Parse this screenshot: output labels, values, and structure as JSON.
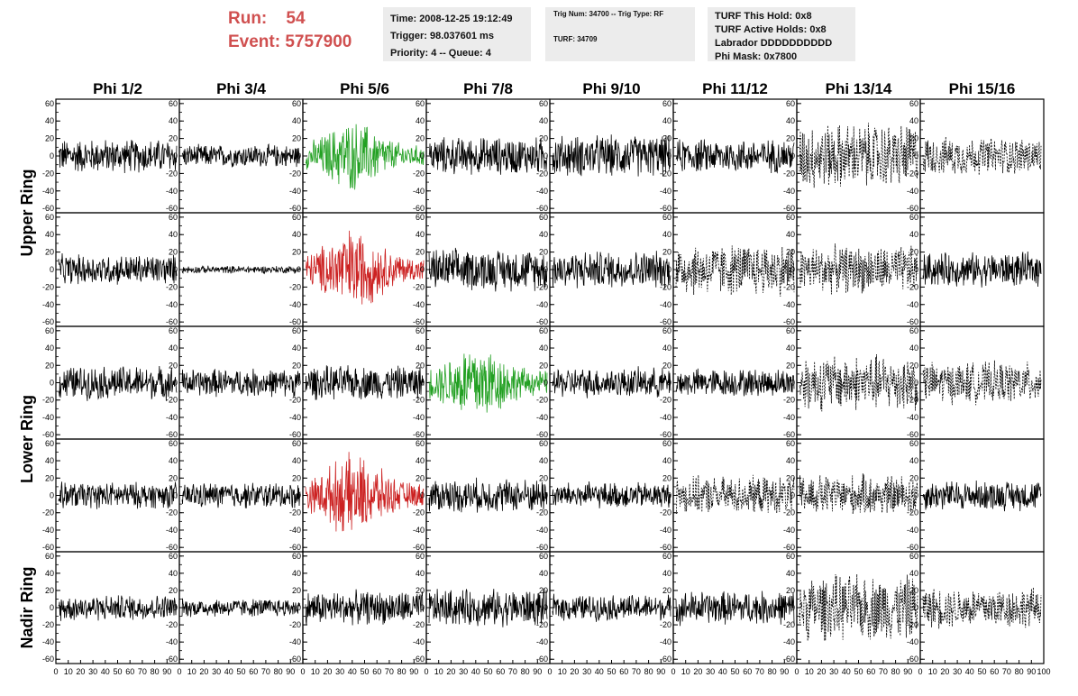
{
  "header": {
    "run_label": "Run:",
    "run_value": "54",
    "event_label": "Event:",
    "event_value": "5757900"
  },
  "info_time": {
    "time": "Time: 2008-12-25 19:12:49",
    "trigger": "Trigger: 98.037601 ms",
    "priority": "Priority: 4 -- Queue: 4"
  },
  "info_trig": {
    "trig": "Trig Num: 34700 -- Trig Type: RF",
    "turf": "TURF: 34709"
  },
  "info_turf": {
    "hold": "TURF This Hold: 0x8",
    "active": "TURF Active Holds: 0x8",
    "labrador": "Labrador DDDDDDDDDD",
    "phimask": "Phi Mask: 0x7800"
  },
  "chart_data": {
    "type": "line",
    "columns": [
      "Phi 1/2",
      "Phi 3/4",
      "Phi 5/6",
      "Phi 7/8",
      "Phi 9/10",
      "Phi 11/12",
      "Phi 13/14",
      "Phi 15/16"
    ],
    "ring_labels": [
      "Upper Ring",
      "Lower Ring",
      "Nadir Ring"
    ],
    "ylim": [
      -65,
      65
    ],
    "xlim": [
      0,
      100
    ],
    "y_ticks": [
      "60",
      "40",
      "20",
      "0",
      "-20",
      "-40",
      "-60"
    ],
    "x_tick_labels": [
      "0",
      "10",
      "20",
      "30",
      "40",
      "50",
      "60",
      "70",
      "80",
      "90",
      "100"
    ],
    "line_color_default": "#000000",
    "line_color_green": "#22a022",
    "line_color_red": "#cc2222",
    "panels": [
      [
        {
          "amp": 18,
          "style": "black"
        },
        {
          "amp": 12,
          "style": "black"
        },
        {
          "amp": 30,
          "style": "green",
          "burst": true
        },
        {
          "amp": 20,
          "style": "black"
        },
        {
          "amp": 22,
          "style": "black"
        },
        {
          "amp": 18,
          "style": "black"
        },
        {
          "amp": 35,
          "style": "dashed"
        },
        {
          "amp": 20,
          "style": "dashed"
        }
      ],
      [
        {
          "amp": 16,
          "style": "black"
        },
        {
          "amp": 4,
          "style": "black"
        },
        {
          "amp": 35,
          "style": "red",
          "burst": true
        },
        {
          "amp": 22,
          "style": "black"
        },
        {
          "amp": 20,
          "style": "black"
        },
        {
          "amp": 28,
          "style": "dashed"
        },
        {
          "amp": 25,
          "style": "dashed"
        },
        {
          "amp": 18,
          "style": "black"
        }
      ],
      [
        {
          "amp": 18,
          "style": "black"
        },
        {
          "amp": 15,
          "style": "black"
        },
        {
          "amp": 18,
          "style": "black"
        },
        {
          "amp": 35,
          "style": "green",
          "burst": true
        },
        {
          "amp": 16,
          "style": "black"
        },
        {
          "amp": 15,
          "style": "black"
        },
        {
          "amp": 30,
          "style": "dashed"
        },
        {
          "amp": 22,
          "style": "dashed"
        }
      ],
      [
        {
          "amp": 14,
          "style": "black"
        },
        {
          "amp": 14,
          "style": "black"
        },
        {
          "amp": 35,
          "style": "red",
          "burst": true
        },
        {
          "amp": 18,
          "style": "black"
        },
        {
          "amp": 14,
          "style": "black"
        },
        {
          "amp": 20,
          "style": "dashed"
        },
        {
          "amp": 22,
          "style": "dashed"
        },
        {
          "amp": 16,
          "style": "black"
        }
      ],
      [
        {
          "amp": 14,
          "style": "black"
        },
        {
          "amp": 10,
          "style": "black"
        },
        {
          "amp": 18,
          "style": "black"
        },
        {
          "amp": 20,
          "style": "black"
        },
        {
          "amp": 14,
          "style": "black"
        },
        {
          "amp": 18,
          "style": "black"
        },
        {
          "amp": 35,
          "style": "dashed"
        },
        {
          "amp": 22,
          "style": "dashed"
        }
      ]
    ]
  }
}
